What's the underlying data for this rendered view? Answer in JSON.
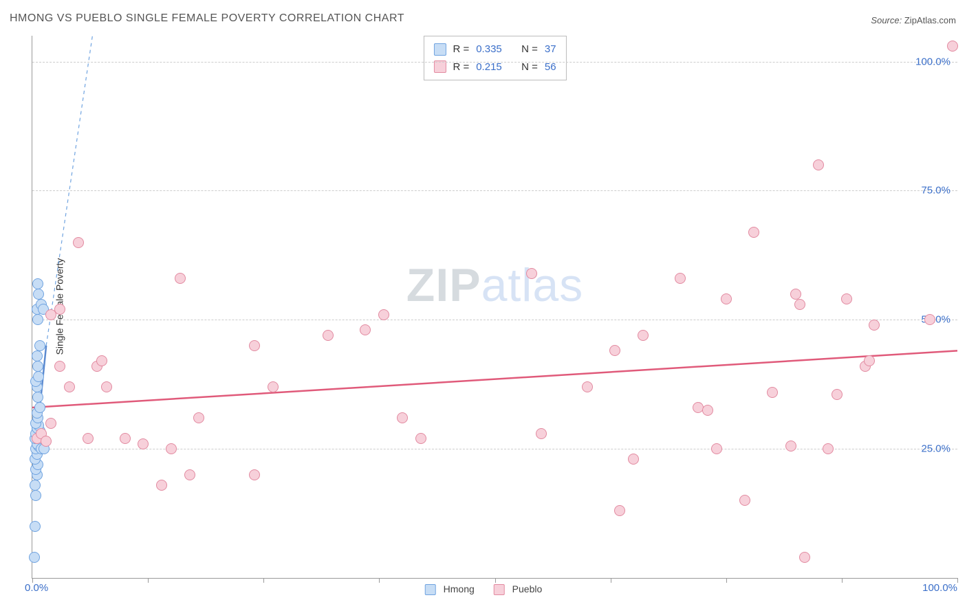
{
  "title": "HMONG VS PUEBLO SINGLE FEMALE POVERTY CORRELATION CHART",
  "source_label": "Source:",
  "source_name": "ZipAtlas.com",
  "ylabel": "Single Female Poverty",
  "watermark_a": "ZIP",
  "watermark_b": "atlas",
  "chart": {
    "type": "scatter",
    "xlim": [
      0,
      100
    ],
    "ylim": [
      0,
      105
    ],
    "x_tick_positions": [
      0,
      12.5,
      25,
      37.5,
      50,
      62.5,
      75,
      87.5,
      100
    ],
    "y_gridlines": [
      25,
      50,
      75,
      100
    ],
    "y_tick_labels": [
      "25.0%",
      "50.0%",
      "75.0%",
      "100.0%"
    ],
    "x_tick_label_min": "0.0%",
    "x_tick_label_max": "100.0%",
    "background_color": "#ffffff",
    "grid_color": "#cccccc",
    "axis_color": "#999999",
    "tick_label_color": "#3b6fc9",
    "marker_radius": 8,
    "marker_stroke_width": 1.5,
    "series": [
      {
        "name": "Hmong",
        "label": "Hmong",
        "fill": "#c7ddf5",
        "stroke": "#6fa3e0",
        "r_value": "0.335",
        "n_value": "37",
        "trend_solid": {
          "x1": 0.3,
          "y1": 24,
          "x2": 1.5,
          "y2": 45,
          "color": "#5b8ad0",
          "width": 2.5
        },
        "trend_dash": {
          "x1": 1.5,
          "y1": 45,
          "x2": 6.5,
          "y2": 105,
          "color": "#6fa3e0",
          "width": 1.2
        },
        "points": [
          [
            0.2,
            4
          ],
          [
            0.3,
            10
          ],
          [
            0.4,
            16
          ],
          [
            0.3,
            18
          ],
          [
            0.5,
            20
          ],
          [
            0.4,
            21
          ],
          [
            0.6,
            22
          ],
          [
            0.3,
            23
          ],
          [
            0.5,
            24
          ],
          [
            0.4,
            25
          ],
          [
            0.7,
            25.5
          ],
          [
            0.5,
            26
          ],
          [
            0.3,
            27
          ],
          [
            0.6,
            27.5
          ],
          [
            0.4,
            28
          ],
          [
            0.8,
            28.5
          ],
          [
            0.5,
            29
          ],
          [
            0.7,
            29.5
          ],
          [
            0.4,
            30
          ],
          [
            0.6,
            31
          ],
          [
            0.5,
            32
          ],
          [
            0.8,
            33
          ],
          [
            0.6,
            35
          ],
          [
            0.5,
            37
          ],
          [
            0.4,
            38
          ],
          [
            0.7,
            39
          ],
          [
            0.6,
            41
          ],
          [
            0.5,
            43
          ],
          [
            0.8,
            45
          ],
          [
            0.6,
            50
          ],
          [
            0.5,
            52
          ],
          [
            0.7,
            55
          ],
          [
            0.6,
            57
          ],
          [
            1.0,
            53
          ],
          [
            1.2,
            52
          ],
          [
            1.0,
            25
          ],
          [
            1.3,
            25
          ]
        ]
      },
      {
        "name": "Pueblo",
        "label": "Pueblo",
        "fill": "#f7d0da",
        "stroke": "#e28aa0",
        "r_value": "0.215",
        "n_value": "56",
        "trend_solid": {
          "x1": 0,
          "y1": 33,
          "x2": 100,
          "y2": 44,
          "color": "#e05a7a",
          "width": 2.5
        },
        "points": [
          [
            0.5,
            27
          ],
          [
            1,
            28
          ],
          [
            1.5,
            26.5
          ],
          [
            2,
            30
          ],
          [
            2,
            51
          ],
          [
            3,
            41
          ],
          [
            3,
            52
          ],
          [
            4,
            37
          ],
          [
            5,
            65
          ],
          [
            6,
            27
          ],
          [
            7,
            41
          ],
          [
            7.5,
            42
          ],
          [
            8,
            37
          ],
          [
            10,
            27
          ],
          [
            12,
            26
          ],
          [
            14,
            18
          ],
          [
            15,
            25
          ],
          [
            16,
            58
          ],
          [
            17,
            20
          ],
          [
            18,
            31
          ],
          [
            24,
            45
          ],
          [
            24,
            20
          ],
          [
            26,
            37
          ],
          [
            32,
            47
          ],
          [
            36,
            48
          ],
          [
            38,
            51
          ],
          [
            40,
            31
          ],
          [
            42,
            27
          ],
          [
            54,
            59
          ],
          [
            55,
            28
          ],
          [
            60,
            37
          ],
          [
            63,
            44
          ],
          [
            63.5,
            13
          ],
          [
            65,
            23
          ],
          [
            66,
            47
          ],
          [
            70,
            58
          ],
          [
            72,
            33
          ],
          [
            73,
            32.5
          ],
          [
            74,
            25
          ],
          [
            75,
            54
          ],
          [
            77,
            15
          ],
          [
            78,
            67
          ],
          [
            80,
            36
          ],
          [
            82,
            25.5
          ],
          [
            82.5,
            55
          ],
          [
            83,
            53
          ],
          [
            83.5,
            4
          ],
          [
            85,
            80
          ],
          [
            86,
            25
          ],
          [
            87,
            35.5
          ],
          [
            88,
            54
          ],
          [
            90,
            41
          ],
          [
            90.5,
            42
          ],
          [
            91,
            49
          ],
          [
            97,
            50
          ],
          [
            99.5,
            103
          ]
        ]
      }
    ]
  },
  "legend_top": {
    "r_label": "R =",
    "n_label": "N ="
  },
  "legend_bottom_labels": [
    "Hmong",
    "Pueblo"
  ]
}
